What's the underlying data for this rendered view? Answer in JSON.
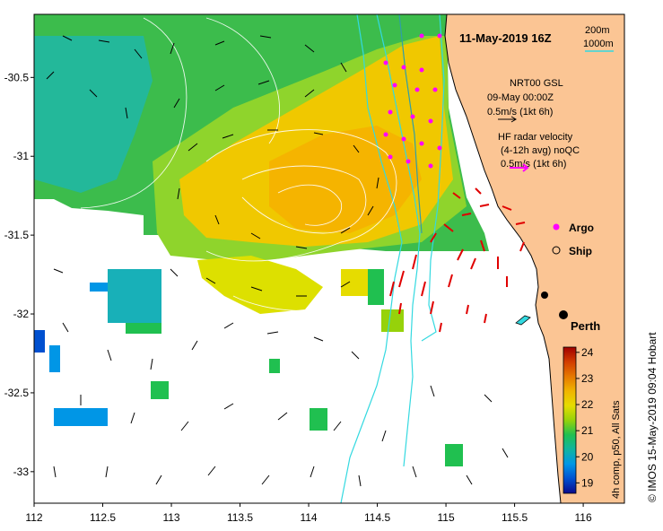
{
  "map": {
    "title": "11-May-2019 16Z",
    "scale_labels": [
      "200m",
      "1000m"
    ],
    "credit": "© IMOS 15-May-2019 09:04 Hobart",
    "place_label": "Perth",
    "x_ticks": [
      112,
      112.5,
      113,
      113.5,
      114,
      114.5,
      115,
      115.5,
      116
    ],
    "x_tick_labels": [
      "112",
      "112.5",
      "113",
      "113.5",
      "114",
      "114.5",
      "115",
      "115.5",
      "116"
    ],
    "y_ticks": [
      -30.5,
      -31,
      -31.5,
      -32,
      -32.5,
      -33
    ],
    "y_tick_labels": [
      "-30.5",
      "-31",
      "-31.5",
      "-32",
      "-32.5",
      "-33"
    ],
    "lon_range": [
      112,
      116.3
    ],
    "lat_range": [
      -33.2,
      -30.1
    ]
  },
  "legend": {
    "nrt_line1": "NRT00 GSL",
    "nrt_line2": "09-May 00:00Z",
    "nrt_line3": "0.5m/s (1kt 6h)",
    "hf_line1": "HF radar velocity",
    "hf_line2": "(4-12h avg) noQC",
    "hf_line3": "0.5m/s (1kt 6h)",
    "argo_label": "Argo",
    "ship_label": "Ship"
  },
  "colorbar": {
    "caption": "4h comp, p50, All Sats",
    "ticks": [
      19,
      20,
      21,
      22,
      23,
      24
    ],
    "tick_labels": [
      "19",
      "20",
      "21",
      "22",
      "23",
      "24"
    ],
    "range": [
      18.6,
      24.2
    ],
    "colors": [
      "#0a0a8c",
      "#0050d0",
      "#0096e6",
      "#10b4a0",
      "#20c050",
      "#96d20a",
      "#e6dc00",
      "#f0b400",
      "#e67800",
      "#d23c00",
      "#a00000"
    ]
  },
  "colors": {
    "land": "#fbc594",
    "bathy": "#33d9e0",
    "hf_vec": "#e00000",
    "argo": "#ff00ff",
    "model_vec": "#000000"
  }
}
